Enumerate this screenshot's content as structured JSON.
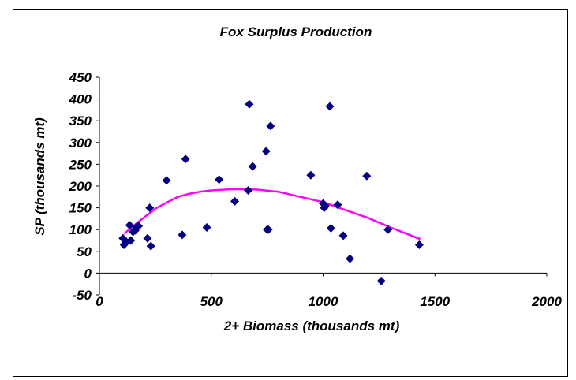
{
  "chart_data": {
    "type": "scatter",
    "title": "Fox Surplus Production",
    "xlabel": "2+ Biomass (thousands mt)",
    "ylabel": "SP (thousands mt)",
    "xlim": [
      0,
      2000
    ],
    "ylim": [
      -50,
      450
    ],
    "x_ticks": [
      "0",
      "500",
      "1000",
      "1500",
      "2000"
    ],
    "y_ticks": [
      "-50",
      "0",
      "50",
      "100",
      "150",
      "200",
      "250",
      "300",
      "350",
      "400",
      "450"
    ],
    "grid": false,
    "legend": "none",
    "colors": {
      "points": "#000080",
      "curve": "#ff00ff"
    },
    "series": [
      {
        "type": "scatter",
        "points": [
          [
            105,
            80
          ],
          [
            110,
            65
          ],
          [
            120,
            72
          ],
          [
            135,
            110
          ],
          [
            140,
            75
          ],
          [
            150,
            95
          ],
          [
            160,
            98
          ],
          [
            165,
            105
          ],
          [
            175,
            108
          ],
          [
            215,
            80
          ],
          [
            225,
            150
          ],
          [
            230,
            62
          ],
          [
            300,
            213
          ],
          [
            370,
            88
          ],
          [
            385,
            262
          ],
          [
            480,
            105
          ],
          [
            535,
            215
          ],
          [
            605,
            165
          ],
          [
            665,
            190
          ],
          [
            670,
            388
          ],
          [
            685,
            245
          ],
          [
            745,
            280
          ],
          [
            750,
            100
          ],
          [
            755,
            100
          ],
          [
            765,
            338
          ],
          [
            945,
            225
          ],
          [
            1000,
            160
          ],
          [
            1005,
            150
          ],
          [
            1010,
            155
          ],
          [
            1030,
            383
          ],
          [
            1035,
            103
          ],
          [
            1065,
            157
          ],
          [
            1090,
            86
          ],
          [
            1120,
            33
          ],
          [
            1195,
            223
          ],
          [
            1260,
            -18
          ],
          [
            1290,
            100
          ],
          [
            1430,
            65
          ]
        ]
      },
      {
        "type": "line",
        "points": [
          [
            110,
            90
          ],
          [
            150,
            108
          ],
          [
            200,
            128
          ],
          [
            250,
            148
          ],
          [
            300,
            162
          ],
          [
            350,
            175
          ],
          [
            400,
            182
          ],
          [
            450,
            187
          ],
          [
            500,
            190
          ],
          [
            600,
            193
          ],
          [
            700,
            192
          ],
          [
            800,
            187
          ],
          [
            900,
            175
          ],
          [
            1000,
            163
          ],
          [
            1100,
            145
          ],
          [
            1200,
            127
          ],
          [
            1300,
            105
          ],
          [
            1435,
            78
          ]
        ]
      }
    ]
  }
}
